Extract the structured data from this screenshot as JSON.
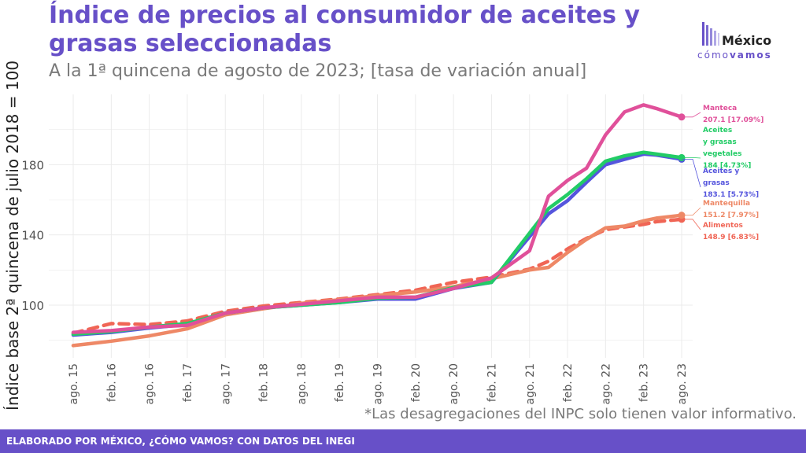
{
  "header": {
    "title": "Índice de precios al consumidor de aceites y grasas seleccionadas",
    "subtitle": "A la 1ª quincena de agosto de 2023; [tasa de variación anual]"
  },
  "logo": {
    "word_top": "México",
    "word_bottom_light": "cómo",
    "word_bottom_bold": "vamos",
    "icon": "bar-chart-logo-icon"
  },
  "footnote": "*Las desagregaciones del INPC solo tienen valor informativo.",
  "footer": "ELABORADO POR MÉXICO, ¿CÓMO VAMOS? CON DATOS DEL INEGI",
  "chart_data": {
    "type": "line",
    "ylabel": "Índice base 2ª quincena de julio 2018 = 100",
    "xlabel": "",
    "x_ticks": [
      "ago. 15",
      "feb. 16",
      "ago. 16",
      "feb. 17",
      "ago. 17",
      "feb. 18",
      "ago. 18",
      "feb. 19",
      "ago. 19",
      "feb. 20",
      "ago. 20",
      "feb. 21",
      "ago. 21",
      "feb. 22",
      "ago. 22",
      "feb. 23",
      "ago. 23"
    ],
    "y_ticks": [
      100,
      140,
      180
    ],
    "ylim": [
      70,
      220
    ],
    "grid": true,
    "x": [
      "ago. 15",
      "feb. 16",
      "ago. 16",
      "feb. 17",
      "ago. 17",
      "feb. 18",
      "ago. 18",
      "feb. 19",
      "ago. 19",
      "feb. 20",
      "ago. 20",
      "feb. 21",
      "ago. 21",
      "nov. 21",
      "feb. 22",
      "may. 22",
      "ago. 22",
      "nov. 22",
      "feb. 23",
      "abr. 23",
      "ago. 23"
    ],
    "series": [
      {
        "name": "Manteca",
        "color": "#e0509a",
        "dashed": false,
        "label_value": "207.1 [17.09%]",
        "values": [
          84.5,
          85.5,
          87.5,
          88.5,
          95.5,
          98.5,
          100.5,
          102.5,
          104.5,
          104.5,
          109.5,
          115.5,
          131,
          162,
          171,
          178,
          197,
          210,
          214,
          212,
          207.1
        ]
      },
      {
        "name": "Aceites y grasas vegetales",
        "color": "#22cc66",
        "dashed": false,
        "label_value": "184 [4.73%]",
        "values": [
          83.5,
          85,
          87.5,
          89.5,
          95.5,
          98.5,
          100,
          101.5,
          104,
          104.5,
          110,
          113,
          141,
          155,
          163,
          172,
          182,
          185,
          187,
          186,
          184
        ]
      },
      {
        "name": "Aceites y grasas",
        "color": "#5555dd",
        "dashed": false,
        "label_value": "183.1 [5.73%]",
        "values": [
          83,
          84.5,
          87,
          89,
          95.5,
          98.5,
          100,
          101.5,
          103.5,
          103.5,
          109.5,
          113,
          139,
          152,
          159.5,
          170,
          180,
          183,
          186,
          185.5,
          183.1
        ]
      },
      {
        "name": "Mantequilla",
        "color": "#ee8866",
        "dashed": false,
        "label_value": "151.2 [7.97%]",
        "values": [
          77,
          79.5,
          82.5,
          86.5,
          94.5,
          98,
          101,
          103,
          105.5,
          107.5,
          110.5,
          115,
          120,
          121.5,
          130,
          137.5,
          144,
          145,
          148,
          149.5,
          151.2
        ]
      },
      {
        "name": "Alimentos",
        "color": "#f06555",
        "dashed": true,
        "label_value": "148.9 [6.83%]",
        "values": [
          84,
          89.5,
          89,
          91,
          96.5,
          99.5,
          101.5,
          103.5,
          106,
          108.5,
          113,
          116,
          120.5,
          125,
          132,
          138,
          143,
          144.5,
          146,
          147.5,
          148.9
        ]
      }
    ]
  }
}
